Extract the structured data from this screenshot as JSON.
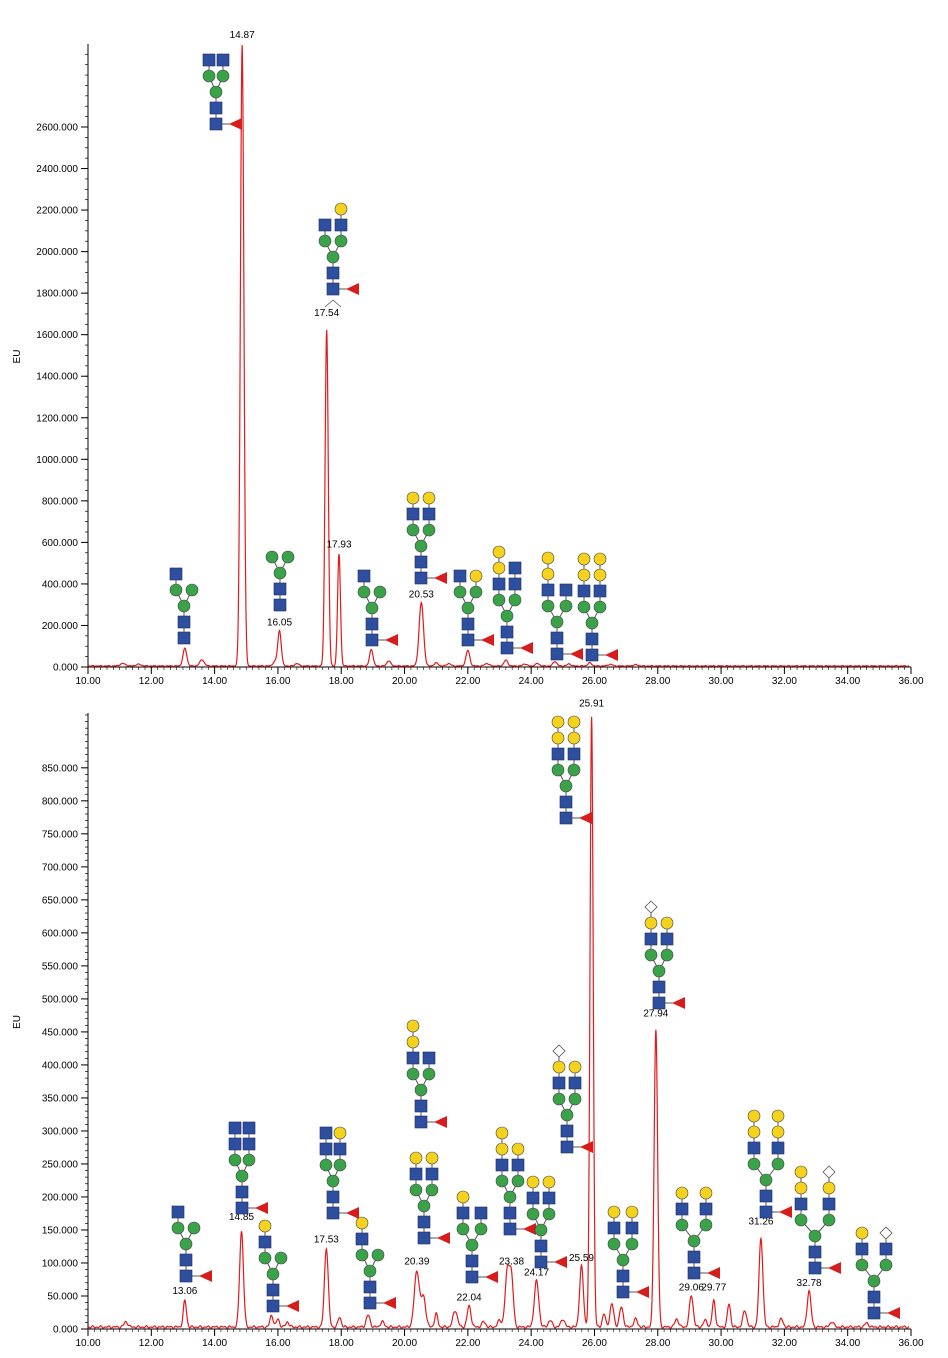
{
  "chart_data": [
    {
      "type": "line",
      "ylabel": "EU",
      "xlim": [
        10,
        36
      ],
      "ylim": [
        0,
        3000
      ],
      "x_ticks": [
        "10.00",
        "12.00",
        "14.00",
        "16.00",
        "18.00",
        "20.00",
        "22.00",
        "24.00",
        "26.00",
        "28.00",
        "30.00",
        "32.00",
        "34.00",
        "36.00"
      ],
      "y_ticks": [
        {
          "value": 0,
          "label": "0.000"
        },
        {
          "value": 200,
          "label": "200.000"
        },
        {
          "value": 400,
          "label": "400.000"
        },
        {
          "value": 600,
          "label": "600.000"
        },
        {
          "value": 800,
          "label": "800.000"
        },
        {
          "value": 1000,
          "label": "1000.000"
        },
        {
          "value": 1200,
          "label": "1200.000"
        },
        {
          "value": 1400,
          "label": "1400.000"
        },
        {
          "value": 1600,
          "label": "1600.000"
        },
        {
          "value": 1800,
          "label": "1800.000"
        },
        {
          "value": 2000,
          "label": "2000.000"
        },
        {
          "value": 2200,
          "label": "2200.000"
        },
        {
          "value": 2400,
          "label": "2400.000"
        },
        {
          "value": 2600,
          "label": "2600.000"
        }
      ],
      "baseline": 5,
      "peaks": [
        {
          "x": 11.1,
          "y": 12,
          "w": 0.08
        },
        {
          "x": 11.6,
          "y": 8,
          "w": 0.08
        },
        {
          "x": 13.06,
          "y": 85,
          "w": 0.06
        },
        {
          "x": 13.6,
          "y": 30,
          "w": 0.07
        },
        {
          "x": 14.87,
          "y": 2990,
          "w": 0.055
        },
        {
          "x": 15.9,
          "y": 20,
          "w": 0.06
        },
        {
          "x": 16.05,
          "y": 170,
          "w": 0.055
        },
        {
          "x": 16.6,
          "y": 12,
          "w": 0.06
        },
        {
          "x": 17.54,
          "y": 1620,
          "w": 0.05
        },
        {
          "x": 17.93,
          "y": 540,
          "w": 0.045
        },
        {
          "x": 18.95,
          "y": 80,
          "w": 0.055
        },
        {
          "x": 19.5,
          "y": 25,
          "w": 0.06
        },
        {
          "x": 20.53,
          "y": 305,
          "w": 0.07
        },
        {
          "x": 21.0,
          "y": 15,
          "w": 0.06
        },
        {
          "x": 21.4,
          "y": 12,
          "w": 0.06
        },
        {
          "x": 22.0,
          "y": 75,
          "w": 0.06
        },
        {
          "x": 22.6,
          "y": 12,
          "w": 0.07
        },
        {
          "x": 23.2,
          "y": 28,
          "w": 0.06
        },
        {
          "x": 23.8,
          "y": 10,
          "w": 0.06
        },
        {
          "x": 24.2,
          "y": 12,
          "w": 0.06
        },
        {
          "x": 24.75,
          "y": 22,
          "w": 0.06
        },
        {
          "x": 25.2,
          "y": 10,
          "w": 0.06
        },
        {
          "x": 25.85,
          "y": 15,
          "w": 0.06
        },
        {
          "x": 26.5,
          "y": 8,
          "w": 0.07
        },
        {
          "x": 27.3,
          "y": 6,
          "w": 0.07
        }
      ],
      "peak_labels": [
        {
          "text": "14.87",
          "x": 14.87,
          "y": 3020
        },
        {
          "text": "17.54",
          "x": 17.54,
          "y": 1680
        },
        {
          "text": "17.93",
          "x": 17.93,
          "y": 565
        },
        {
          "text": "16.05",
          "x": 16.05,
          "y": 190
        },
        {
          "text": "20.53",
          "x": 20.53,
          "y": 325
        }
      ],
      "line_color": "#e31a1c"
    },
    {
      "type": "line",
      "ylabel": "EU",
      "xlim": [
        10,
        36
      ],
      "ylim": [
        0,
        920
      ],
      "x_ticks": [
        "10.00",
        "12.00",
        "14.00",
        "16.00",
        "18.00",
        "20.00",
        "22.00",
        "24.00",
        "26.00",
        "28.00",
        "30.00",
        "32.00",
        "34.00",
        "36.00"
      ],
      "y_ticks": [
        {
          "value": 0,
          "label": "0.000"
        },
        {
          "value": 50,
          "label": "50.000"
        },
        {
          "value": 100,
          "label": "100.000"
        },
        {
          "value": 150,
          "label": "150.000"
        },
        {
          "value": 200,
          "label": "200.000"
        },
        {
          "value": 250,
          "label": "250.000"
        },
        {
          "value": 300,
          "label": "300.000"
        },
        {
          "value": 350,
          "label": "350.000"
        },
        {
          "value": 400,
          "label": "400.000"
        },
        {
          "value": 450,
          "label": "450.000"
        },
        {
          "value": 500,
          "label": "500.000"
        },
        {
          "value": 550,
          "label": "550.000"
        },
        {
          "value": 600,
          "label": "600.000"
        },
        {
          "value": 650,
          "label": "650.000"
        },
        {
          "value": 700,
          "label": "700.000"
        },
        {
          "value": 750,
          "label": "750.000"
        },
        {
          "value": 800,
          "label": "800.000"
        },
        {
          "value": 850,
          "label": "850.000"
        }
      ],
      "baseline": 3,
      "peaks": [
        {
          "x": 11.2,
          "y": 8,
          "w": 0.06
        },
        {
          "x": 13.06,
          "y": 40,
          "w": 0.05
        },
        {
          "x": 14.85,
          "y": 145,
          "w": 0.06
        },
        {
          "x": 15.8,
          "y": 18,
          "w": 0.05
        },
        {
          "x": 16.0,
          "y": 12,
          "w": 0.05
        },
        {
          "x": 16.3,
          "y": 8,
          "w": 0.05
        },
        {
          "x": 17.53,
          "y": 120,
          "w": 0.06
        },
        {
          "x": 17.95,
          "y": 15,
          "w": 0.05
        },
        {
          "x": 18.85,
          "y": 18,
          "w": 0.06
        },
        {
          "x": 19.3,
          "y": 8,
          "w": 0.06
        },
        {
          "x": 20.39,
          "y": 85,
          "w": 0.08
        },
        {
          "x": 20.6,
          "y": 45,
          "w": 0.07
        },
        {
          "x": 21.0,
          "y": 20,
          "w": 0.05
        },
        {
          "x": 21.6,
          "y": 25,
          "w": 0.07
        },
        {
          "x": 22.04,
          "y": 32,
          "w": 0.06
        },
        {
          "x": 22.5,
          "y": 8,
          "w": 0.06
        },
        {
          "x": 23.0,
          "y": 10,
          "w": 0.06
        },
        {
          "x": 23.25,
          "y": 85,
          "w": 0.07
        },
        {
          "x": 23.38,
          "y": 70,
          "w": 0.06
        },
        {
          "x": 24.17,
          "y": 70,
          "w": 0.07
        },
        {
          "x": 24.6,
          "y": 10,
          "w": 0.06
        },
        {
          "x": 25.0,
          "y": 12,
          "w": 0.06
        },
        {
          "x": 25.59,
          "y": 92,
          "w": 0.06
        },
        {
          "x": 25.91,
          "y": 925,
          "w": 0.05
        },
        {
          "x": 26.3,
          "y": 20,
          "w": 0.05
        },
        {
          "x": 26.55,
          "y": 35,
          "w": 0.06
        },
        {
          "x": 26.85,
          "y": 30,
          "w": 0.06
        },
        {
          "x": 27.3,
          "y": 12,
          "w": 0.06
        },
        {
          "x": 27.94,
          "y": 450,
          "w": 0.055
        },
        {
          "x": 28.6,
          "y": 12,
          "w": 0.06
        },
        {
          "x": 29.06,
          "y": 48,
          "w": 0.06
        },
        {
          "x": 29.5,
          "y": 10,
          "w": 0.06
        },
        {
          "x": 29.77,
          "y": 40,
          "w": 0.05
        },
        {
          "x": 30.25,
          "y": 35,
          "w": 0.05
        },
        {
          "x": 30.75,
          "y": 25,
          "w": 0.06
        },
        {
          "x": 31.26,
          "y": 135,
          "w": 0.06
        },
        {
          "x": 31.9,
          "y": 12,
          "w": 0.06
        },
        {
          "x": 32.78,
          "y": 55,
          "w": 0.06
        },
        {
          "x": 33.5,
          "y": 8,
          "w": 0.06
        },
        {
          "x": 34.6,
          "y": 6,
          "w": 0.06
        }
      ],
      "peak_labels": [
        {
          "text": "25.91",
          "x": 25.91,
          "y": 940
        },
        {
          "text": "27.94",
          "x": 27.94,
          "y": 470
        },
        {
          "text": "31.26",
          "x": 31.26,
          "y": 155
        },
        {
          "text": "14.85",
          "x": 14.85,
          "y": 162
        },
        {
          "text": "17.53",
          "x": 17.53,
          "y": 128
        },
        {
          "text": "13.06",
          "x": 13.06,
          "y": 50
        },
        {
          "text": "20.39",
          "x": 20.39,
          "y": 95
        },
        {
          "text": "22.04",
          "x": 22.04,
          "y": 40
        },
        {
          "text": "23.38",
          "x": 23.38,
          "y": 95
        },
        {
          "text": "24.17",
          "x": 24.17,
          "y": 78
        },
        {
          "text": "25.59",
          "x": 25.59,
          "y": 100
        },
        {
          "text": "29.06",
          "x": 29.06,
          "y": 55
        },
        {
          "text": "29.77",
          "x": 29.77,
          "y": 55
        },
        {
          "text": "32.78",
          "x": 32.78,
          "y": 62
        }
      ],
      "line_color": "#e31a1c"
    }
  ],
  "glycan_colors": {
    "glcnac": "#2e4fa0",
    "mannose": "#3aa34a",
    "galactose": "#f5d21c",
    "fucose": "#d81c1c",
    "sialic": "#ffffff"
  }
}
